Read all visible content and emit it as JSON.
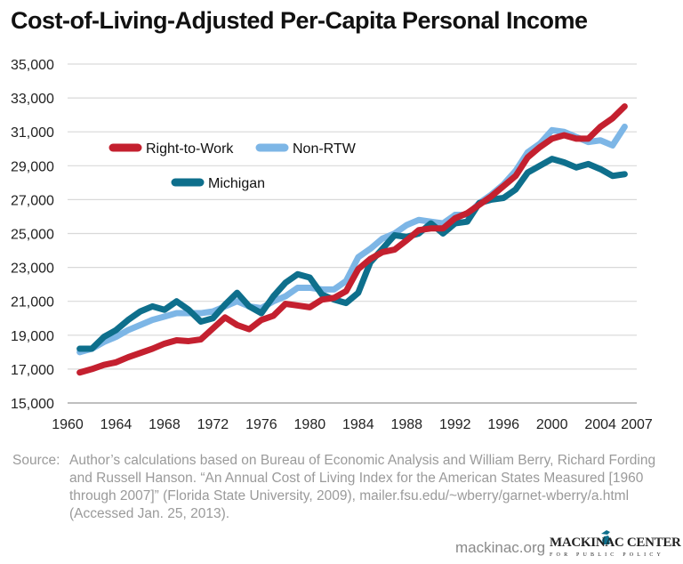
{
  "chart_data": {
    "type": "line",
    "title": "Cost-of-Living-Adjusted Per-Capita Personal Income",
    "xlabel": "",
    "ylabel": "",
    "xlim": [
      1960,
      2007
    ],
    "ylim": [
      15000,
      35000
    ],
    "x_ticks": [
      "1960",
      "1964",
      "1968",
      "1972",
      "1976",
      "1980",
      "1984",
      "1988",
      "1992",
      "1996",
      "2000",
      "2004",
      "2007"
    ],
    "y_ticks": [
      "15,000",
      "17,000",
      "19,000",
      "21,000",
      "23,000",
      "25,000",
      "27,000",
      "29,000",
      "31,000",
      "33,000",
      "35,000"
    ],
    "grid": true,
    "legend_placement": "top-left",
    "x": [
      1961,
      1962,
      1963,
      1964,
      1965,
      1966,
      1967,
      1968,
      1969,
      1970,
      1971,
      1972,
      1973,
      1974,
      1975,
      1976,
      1977,
      1978,
      1979,
      1980,
      1981,
      1982,
      1983,
      1984,
      1985,
      1986,
      1987,
      1988,
      1989,
      1990,
      1991,
      1992,
      1993,
      1994,
      1995,
      1996,
      1997,
      1998,
      1999,
      2000,
      2001,
      2002,
      2003,
      2004,
      2005,
      2006
    ],
    "series": [
      {
        "name": "Non-RTW",
        "color": "#7db6e6",
        "values": [
          18000,
          18200,
          18600,
          18900,
          19300,
          19600,
          19900,
          20100,
          20300,
          20300,
          20300,
          20400,
          20700,
          21000,
          20700,
          20600,
          21000,
          21300,
          21800,
          21800,
          21700,
          21700,
          22200,
          23600,
          24100,
          24700,
          25000,
          25500,
          25800,
          25700,
          25600,
          26100,
          26100,
          26800,
          27300,
          27900,
          28700,
          29800,
          30300,
          31100,
          31000,
          30700,
          30400,
          30500,
          30200,
          31300
        ]
      },
      {
        "name": "Michigan",
        "color": "#0e6f8c",
        "values": [
          18200,
          18200,
          18900,
          19300,
          19900,
          20400,
          20700,
          20500,
          21000,
          20500,
          19800,
          20000,
          20800,
          21500,
          20700,
          20300,
          21300,
          22100,
          22600,
          22400,
          21400,
          21100,
          20900,
          21500,
          23300,
          24100,
          24900,
          24800,
          25000,
          25600,
          25000,
          25600,
          25700,
          26800,
          27000,
          27100,
          27600,
          28600,
          29000,
          29400,
          29200,
          28900,
          29100,
          28800,
          28400,
          28500
        ]
      },
      {
        "name": "Right-to-Work",
        "color": "#c4202f",
        "values": [
          16800,
          17000,
          17250,
          17400,
          17700,
          17950,
          18200,
          18500,
          18700,
          18650,
          18750,
          19400,
          20050,
          19600,
          19350,
          19900,
          20150,
          20850,
          20750,
          20650,
          21100,
          21200,
          21600,
          22900,
          23500,
          23900,
          24050,
          24600,
          25200,
          25300,
          25300,
          25900,
          26200,
          26700,
          27200,
          27800,
          28400,
          29500,
          30100,
          30600,
          30800,
          30600,
          30600,
          31300,
          31800,
          32500
        ]
      }
    ]
  },
  "source": {
    "label": "Source:",
    "text": "Author’s calculations based on Bureau of Economic Analysis and William Berry, Richard Fording and Russell Hanson. “An Annual Cost of Living Index for the American States Measured [1960 through 2007]” (Florida State University, 2009), mailer.fsu.edu/~wberry/garnet-wberry/a.html (Accessed Jan. 25, 2013)."
  },
  "footer": {
    "site": "mackinac.org",
    "logo_name": "MACKINAC CENTER",
    "logo_sub": "FOR PUBLIC POLICY",
    "logo_color": "#0e6f8c"
  }
}
